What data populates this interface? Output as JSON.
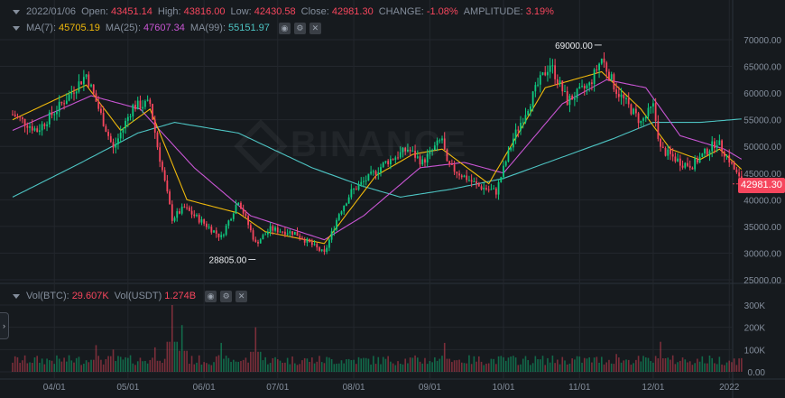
{
  "header": {
    "date": "2022/01/06",
    "open_label": "Open:",
    "open": "43451.14",
    "high_label": "High:",
    "high": "43816.00",
    "low_label": "Low:",
    "low": "42430.58",
    "close_label": "Close:",
    "close": "42981.30",
    "change_label": "CHANGE:",
    "change": "-1.08%",
    "amplitude_label": "AMPLITUDE:",
    "amplitude": "3.19%"
  },
  "ma": {
    "ma7_label": "MA(7):",
    "ma7": "45705.19",
    "ma25_label": "MA(25):",
    "ma25": "47607.34",
    "ma99_label": "MA(99):",
    "ma99": "55151.97"
  },
  "volume": {
    "vol_btc_label": "Vol(BTC):",
    "vol_btc": "29.607K",
    "vol_usdt_label": "Vol(USDT)",
    "vol_usdt": "1.274B"
  },
  "watermark": "BINANCE",
  "price_tag": "42981.30",
  "side_toggle_icon": "chevron-right-icon",
  "colors": {
    "up": "#0ecb81",
    "down": "#f6465d",
    "ma7": "#f0b90b",
    "ma25": "#c855d3",
    "ma99": "#4dc3c2",
    "grid": "#23272d",
    "axis_text": "#848e9c"
  },
  "chart_data": {
    "type": "candlestick",
    "price_axis": {
      "ticks": [
        25000,
        30000,
        35000,
        40000,
        45000,
        50000,
        55000,
        60000,
        65000,
        70000
      ],
      "tick_labels": [
        "25000.00",
        "30000.00",
        "35000.00",
        "40000.00",
        "45000.00",
        "50000.00",
        "55000.00",
        "60000.00",
        "65000.00",
        "70000.00"
      ]
    },
    "volume_axis": {
      "ticks": [
        0,
        100000,
        200000,
        300000
      ],
      "tick_labels": [
        "0.00",
        "100K",
        "200K",
        "300K"
      ]
    },
    "time_axis": {
      "start": "2021-03-15",
      "end": "2022-01-06",
      "ticks": [
        "2021-04-01",
        "2021-05-01",
        "2021-06-01",
        "2021-07-01",
        "2021-08-01",
        "2021-09-01",
        "2021-10-01",
        "2021-11-01",
        "2021-12-01",
        "2022-01-01"
      ],
      "tick_labels": [
        "04/01",
        "05/01",
        "06/01",
        "07/01",
        "08/01",
        "09/01",
        "10/01",
        "11/01",
        "12/01",
        "2022"
      ]
    },
    "annotations": [
      {
        "label": "69000.00",
        "date": "2021-11-10",
        "price": 69000
      },
      {
        "label": "28805.00",
        "date": "2021-06-22",
        "price": 28805
      }
    ],
    "price_anchors": [
      [
        "2021-03-15",
        56000
      ],
      [
        "2021-03-25",
        53000
      ],
      [
        "2021-04-05",
        58500
      ],
      [
        "2021-04-14",
        63500
      ],
      [
        "2021-04-25",
        49500
      ],
      [
        "2021-05-03",
        57500
      ],
      [
        "2021-05-10",
        58000
      ],
      [
        "2021-05-13",
        50000
      ],
      [
        "2021-05-19",
        36500
      ],
      [
        "2021-05-24",
        38500
      ],
      [
        "2021-06-08",
        33000
      ],
      [
        "2021-06-15",
        40000
      ],
      [
        "2021-06-22",
        31800
      ],
      [
        "2021-06-28",
        34500
      ],
      [
        "2021-07-08",
        33800
      ],
      [
        "2021-07-20",
        29900
      ],
      [
        "2021-07-26",
        37500
      ],
      [
        "2021-07-31",
        41500
      ],
      [
        "2021-08-08",
        44500
      ],
      [
        "2021-08-14",
        47000
      ],
      [
        "2021-08-23",
        49500
      ],
      [
        "2021-08-29",
        47000
      ],
      [
        "2021-09-06",
        51500
      ],
      [
        "2021-09-08",
        46500
      ],
      [
        "2021-09-21",
        42500
      ],
      [
        "2021-09-28",
        41500
      ],
      [
        "2021-10-05",
        51500
      ],
      [
        "2021-10-15",
        61500
      ],
      [
        "2021-10-20",
        65500
      ],
      [
        "2021-10-27",
        58500
      ],
      [
        "2021-11-05",
        61500
      ],
      [
        "2021-11-10",
        66500
      ],
      [
        "2021-11-16",
        60500
      ],
      [
        "2021-11-26",
        54500
      ],
      [
        "2021-12-01",
        57500
      ],
      [
        "2021-12-04",
        49500
      ],
      [
        "2021-12-13",
        46800
      ],
      [
        "2021-12-17",
        46500
      ],
      [
        "2021-12-27",
        51000
      ],
      [
        "2022-01-01",
        47500
      ],
      [
        "2022-01-06",
        42981
      ]
    ],
    "ma_anchors": {
      "ma7": [
        [
          "2021-03-15",
          55000
        ],
        [
          "2021-04-14",
          61500
        ],
        [
          "2021-04-28",
          53000
        ],
        [
          "2021-05-10",
          57000
        ],
        [
          "2021-05-25",
          40000
        ],
        [
          "2021-06-15",
          37500
        ],
        [
          "2021-06-26",
          34000
        ],
        [
          "2021-07-20",
          31800
        ],
        [
          "2021-08-10",
          44500
        ],
        [
          "2021-08-25",
          48500
        ],
        [
          "2021-09-06",
          49500
        ],
        [
          "2021-09-25",
          43000
        ],
        [
          "2021-10-18",
          61000
        ],
        [
          "2021-11-10",
          64000
        ],
        [
          "2021-11-26",
          57000
        ],
        [
          "2021-12-08",
          49500
        ],
        [
          "2021-12-20",
          47500
        ],
        [
          "2021-12-28",
          49500
        ],
        [
          "2022-01-06",
          45705
        ]
      ],
      "ma25": [
        [
          "2021-03-15",
          53000
        ],
        [
          "2021-04-16",
          59500
        ],
        [
          "2021-05-06",
          57000
        ],
        [
          "2021-05-28",
          46000
        ],
        [
          "2021-06-20",
          37000
        ],
        [
          "2021-07-20",
          32500
        ],
        [
          "2021-08-05",
          37000
        ],
        [
          "2021-08-28",
          46000
        ],
        [
          "2021-09-15",
          47000
        ],
        [
          "2021-10-01",
          45000
        ],
        [
          "2021-10-25",
          58000
        ],
        [
          "2021-11-12",
          62500
        ],
        [
          "2021-11-28",
          61000
        ],
        [
          "2021-12-12",
          52000
        ],
        [
          "2021-12-30",
          49500
        ],
        [
          "2022-01-06",
          47607
        ]
      ],
      "ma99": [
        [
          "2021-03-15",
          40500
        ],
        [
          "2021-04-10",
          46500
        ],
        [
          "2021-05-05",
          52500
        ],
        [
          "2021-05-20",
          54500
        ],
        [
          "2021-06-15",
          52500
        ],
        [
          "2021-07-15",
          46000
        ],
        [
          "2021-08-05",
          42500
        ],
        [
          "2021-08-20",
          40500
        ],
        [
          "2021-09-10",
          42000
        ],
        [
          "2021-10-01",
          44000
        ],
        [
          "2021-10-25",
          48000
        ],
        [
          "2021-11-15",
          51500
        ],
        [
          "2021-12-01",
          54500
        ],
        [
          "2021-12-20",
          54500
        ],
        [
          "2022-01-06",
          55152
        ]
      ]
    },
    "volume_spikes": [
      [
        "2021-04-18",
        120000
      ],
      [
        "2021-04-25",
        100000
      ],
      [
        "2021-05-12",
        110000
      ],
      [
        "2021-05-19",
        300000
      ],
      [
        "2021-05-23",
        210000
      ],
      [
        "2021-06-08",
        130000
      ],
      [
        "2021-06-22",
        200000
      ],
      [
        "2021-09-07",
        130000
      ],
      [
        "2021-11-16",
        80000
      ],
      [
        "2021-12-04",
        135000
      ]
    ]
  }
}
